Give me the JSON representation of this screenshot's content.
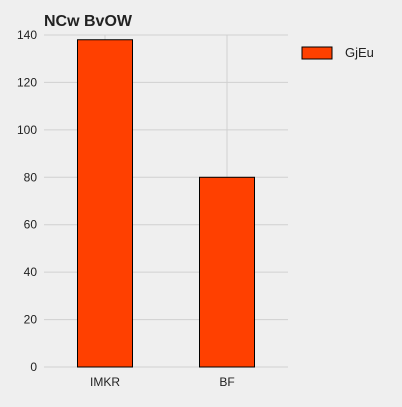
{
  "chart_data": {
    "type": "bar",
    "title": "NCw BvOW",
    "xlabel": "",
    "ylabel": "",
    "categories": [
      "IMKR",
      "BF"
    ],
    "series": [
      {
        "name": "GjEu",
        "values": [
          138,
          80
        ],
        "color": "#ff4000"
      }
    ],
    "ylim": [
      0,
      140
    ],
    "yticks": [
      0,
      20,
      40,
      60,
      80,
      100,
      120,
      140
    ],
    "grid": true,
    "legend": "top-right",
    "background": "#efefef",
    "bar_edge_color": "#000000",
    "grid_color": "#d0d0d0"
  }
}
